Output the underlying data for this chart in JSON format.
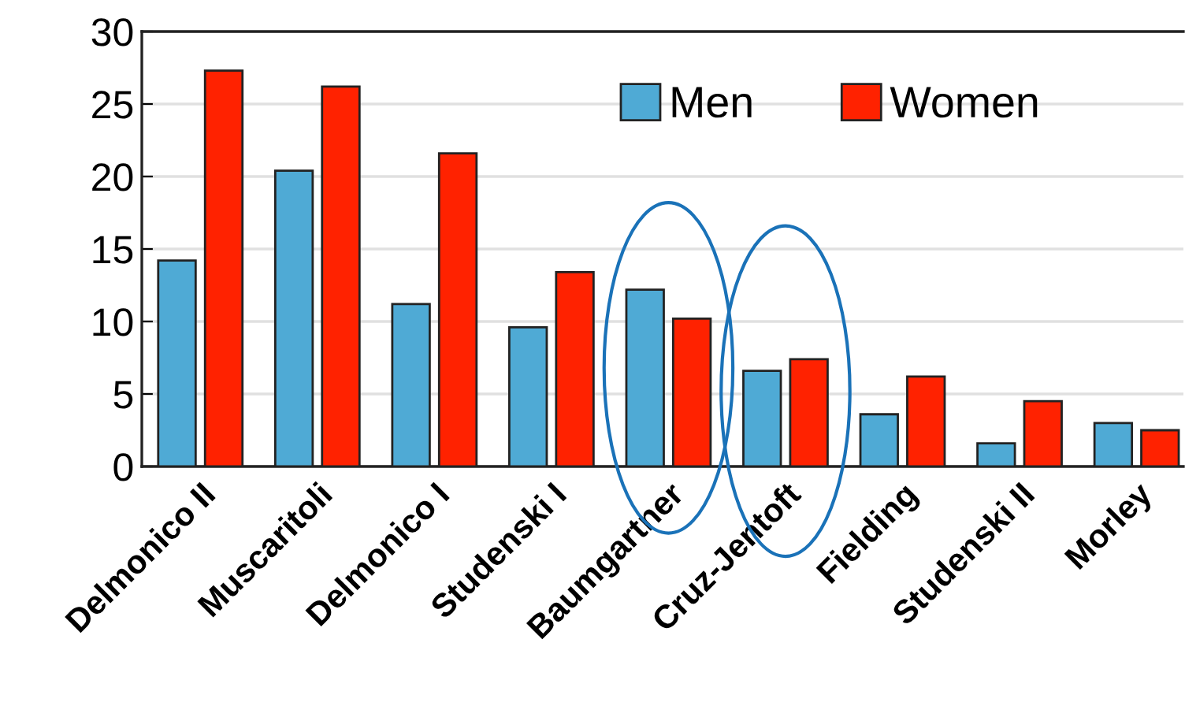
{
  "chart_data": {
    "type": "bar",
    "categories": [
      "Delmonico II",
      "Muscaritoli",
      "Delmonico I",
      "Studenski I",
      "Baumgartner",
      "Cruz-Jentoft",
      "Fielding",
      "Studenski II",
      "Morley"
    ],
    "series": [
      {
        "name": "Men",
        "color": "#4faad5",
        "values": [
          14.2,
          20.4,
          11.2,
          9.6,
          12.2,
          6.6,
          3.6,
          1.6,
          3.0
        ]
      },
      {
        "name": "Women",
        "color": "#ff2200",
        "values": [
          27.3,
          26.2,
          21.6,
          13.4,
          10.2,
          7.4,
          6.2,
          4.5,
          2.5
        ]
      }
    ],
    "ylim": [
      0,
      30
    ],
    "yticks": [
      0,
      5,
      10,
      15,
      20,
      25,
      30
    ],
    "grid": "y",
    "legend": "top right"
  }
}
